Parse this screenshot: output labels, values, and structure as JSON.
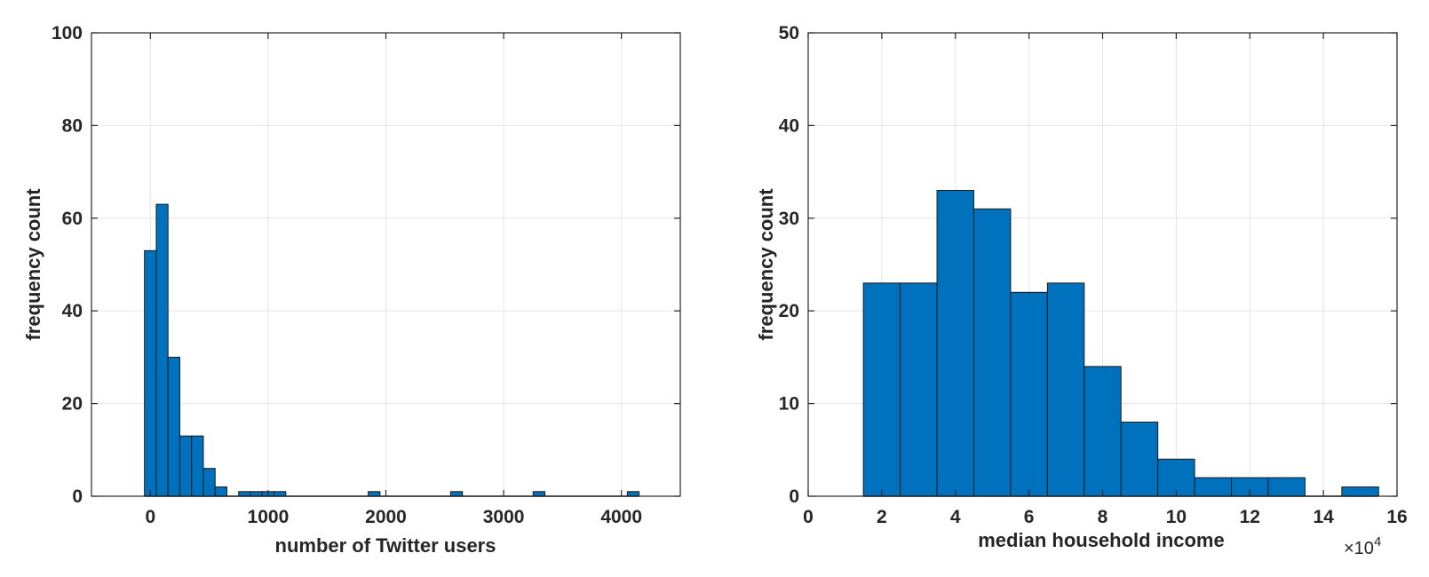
{
  "chart_data": [
    {
      "type": "bar",
      "subtype": "histogram",
      "title": "",
      "xlabel": "number of Twitter users",
      "ylabel": "frequency count",
      "xlim": [
        -500,
        4500
      ],
      "ylim": [
        0,
        100
      ],
      "xticks": [
        0,
        1000,
        2000,
        3000,
        4000
      ],
      "xtick_labels": [
        "0",
        "1000",
        "2000",
        "3000",
        "4000"
      ],
      "yticks": [
        0,
        20,
        40,
        60,
        80,
        100
      ],
      "ytick_labels": [
        "0",
        "20",
        "40",
        "60",
        "80",
        "100"
      ],
      "grid": true,
      "bar_color": "#0072BD",
      "bin_width": 100,
      "bins": [
        {
          "x0": -50,
          "x1": 50,
          "value": 53
        },
        {
          "x0": 50,
          "x1": 150,
          "value": 63
        },
        {
          "x0": 150,
          "x1": 250,
          "value": 30
        },
        {
          "x0": 250,
          "x1": 350,
          "value": 13
        },
        {
          "x0": 350,
          "x1": 450,
          "value": 13
        },
        {
          "x0": 450,
          "x1": 550,
          "value": 6
        },
        {
          "x0": 550,
          "x1": 650,
          "value": 2
        },
        {
          "x0": 650,
          "x1": 750,
          "value": 0
        },
        {
          "x0": 750,
          "x1": 850,
          "value": 1
        },
        {
          "x0": 850,
          "x1": 950,
          "value": 1
        },
        {
          "x0": 950,
          "x1": 1050,
          "value": 1
        },
        {
          "x0": 1050,
          "x1": 1150,
          "value": 1
        },
        {
          "x0": 1850,
          "x1": 1950,
          "value": 1
        },
        {
          "x0": 2550,
          "x1": 2650,
          "value": 1
        },
        {
          "x0": 3250,
          "x1": 3350,
          "value": 1
        },
        {
          "x0": 4050,
          "x1": 4150,
          "value": 1
        }
      ]
    },
    {
      "type": "bar",
      "subtype": "histogram",
      "title": "",
      "xlabel": "median household income",
      "ylabel": "frequency count",
      "x_exponent_label": "×10",
      "x_exponent": "4",
      "xlim": [
        0,
        16
      ],
      "ylim": [
        0,
        50
      ],
      "xticks": [
        0,
        2,
        4,
        6,
        8,
        10,
        12,
        14,
        16
      ],
      "xtick_labels": [
        "0",
        "2",
        "4",
        "6",
        "8",
        "10",
        "12",
        "14",
        "16"
      ],
      "yticks": [
        0,
        10,
        20,
        30,
        40,
        50
      ],
      "ytick_labels": [
        "0",
        "10",
        "20",
        "30",
        "40",
        "50"
      ],
      "grid": true,
      "bar_color": "#0072BD",
      "bin_width": 1,
      "bins": [
        {
          "x0": 1.5,
          "x1": 2.5,
          "value": 23
        },
        {
          "x0": 2.5,
          "x1": 3.5,
          "value": 23
        },
        {
          "x0": 3.5,
          "x1": 4.5,
          "value": 33
        },
        {
          "x0": 4.5,
          "x1": 5.5,
          "value": 31
        },
        {
          "x0": 5.5,
          "x1": 6.5,
          "value": 22
        },
        {
          "x0": 6.5,
          "x1": 7.5,
          "value": 23
        },
        {
          "x0": 7.5,
          "x1": 8.5,
          "value": 14
        },
        {
          "x0": 8.5,
          "x1": 9.5,
          "value": 8
        },
        {
          "x0": 9.5,
          "x1": 10.5,
          "value": 4
        },
        {
          "x0": 10.5,
          "x1": 11.5,
          "value": 2
        },
        {
          "x0": 11.5,
          "x1": 12.5,
          "value": 2
        },
        {
          "x0": 12.5,
          "x1": 13.5,
          "value": 2
        },
        {
          "x0": 13.5,
          "x1": 14.5,
          "value": 0
        },
        {
          "x0": 14.5,
          "x1": 15.5,
          "value": 1
        }
      ]
    }
  ]
}
